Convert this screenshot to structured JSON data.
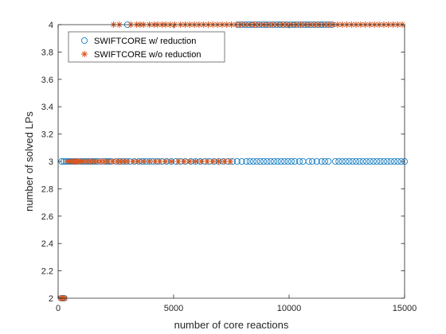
{
  "chart_data": {
    "type": "scatter",
    "xlabel": "number of core reactions",
    "ylabel": "number of solved LPs",
    "xlim": [
      0,
      15000
    ],
    "ylim": [
      2,
      4
    ],
    "x_ticks": [
      0,
      5000,
      10000,
      15000
    ],
    "x_tick_labels": [
      "0",
      "5000",
      "10000",
      "15000"
    ],
    "y_ticks": [
      2,
      2.2,
      2.4,
      2.6,
      2.8,
      3,
      3.2,
      3.4,
      3.6,
      3.8,
      4
    ],
    "y_tick_labels": [
      "2",
      "2.2",
      "2.4",
      "2.6",
      "2.8",
      "3",
      "3.2",
      "3.4",
      "3.6",
      "3.8",
      "4"
    ],
    "grid": false,
    "legend_position": "top-left",
    "series": [
      {
        "name": "SWIFTCORE w/ reduction",
        "marker": "circle",
        "color": "#0072BD",
        "points": [
          [
            150,
            2
          ],
          [
            250,
            2
          ],
          [
            150,
            3
          ],
          [
            250,
            3
          ],
          [
            350,
            3
          ],
          [
            450,
            3
          ],
          [
            550,
            3
          ],
          [
            650,
            3
          ],
          [
            750,
            3
          ],
          [
            850,
            3
          ],
          [
            1000,
            3
          ],
          [
            1100,
            3
          ],
          [
            1200,
            3
          ],
          [
            1300,
            3
          ],
          [
            1400,
            3
          ],
          [
            1500,
            3
          ],
          [
            1600,
            3
          ],
          [
            1700,
            3
          ],
          [
            1850,
            3
          ],
          [
            2000,
            3
          ],
          [
            2100,
            3
          ],
          [
            2200,
            3
          ],
          [
            2300,
            3
          ],
          [
            2500,
            3
          ],
          [
            2650,
            3
          ],
          [
            2800,
            3
          ],
          [
            2950,
            3
          ],
          [
            3100,
            3
          ],
          [
            3300,
            3
          ],
          [
            3500,
            3
          ],
          [
            3650,
            3
          ],
          [
            3800,
            3
          ],
          [
            3950,
            3
          ],
          [
            4100,
            3
          ],
          [
            4300,
            3
          ],
          [
            4500,
            3
          ],
          [
            4700,
            3
          ],
          [
            4900,
            3
          ],
          [
            5100,
            3
          ],
          [
            5300,
            3
          ],
          [
            5500,
            3
          ],
          [
            5750,
            3
          ],
          [
            5950,
            3
          ],
          [
            6150,
            3
          ],
          [
            6350,
            3
          ],
          [
            6550,
            3
          ],
          [
            6750,
            3
          ],
          [
            6950,
            3
          ],
          [
            7150,
            3
          ],
          [
            7350,
            3
          ],
          [
            7550,
            3
          ],
          [
            7750,
            3
          ],
          [
            7950,
            3
          ],
          [
            8150,
            3
          ],
          [
            8300,
            3
          ],
          [
            8450,
            3
          ],
          [
            8600,
            3
          ],
          [
            8750,
            3
          ],
          [
            8900,
            3
          ],
          [
            9050,
            3
          ],
          [
            9200,
            3
          ],
          [
            9350,
            3
          ],
          [
            9500,
            3
          ],
          [
            9650,
            3
          ],
          [
            9800,
            3
          ],
          [
            9950,
            3
          ],
          [
            10100,
            3
          ],
          [
            10250,
            3
          ],
          [
            10450,
            3
          ],
          [
            10600,
            3
          ],
          [
            10850,
            3
          ],
          [
            11000,
            3
          ],
          [
            11200,
            3
          ],
          [
            11400,
            3
          ],
          [
            11550,
            3
          ],
          [
            11700,
            3
          ],
          [
            12000,
            3
          ],
          [
            12150,
            3
          ],
          [
            12300,
            3
          ],
          [
            12450,
            3
          ],
          [
            12600,
            3
          ],
          [
            12750,
            3
          ],
          [
            12900,
            3
          ],
          [
            13050,
            3
          ],
          [
            13200,
            3
          ],
          [
            13350,
            3
          ],
          [
            13500,
            3
          ],
          [
            13650,
            3
          ],
          [
            13800,
            3
          ],
          [
            13950,
            3
          ],
          [
            14100,
            3
          ],
          [
            14250,
            3
          ],
          [
            14400,
            3
          ],
          [
            14550,
            3
          ],
          [
            14700,
            3
          ],
          [
            14850,
            3
          ],
          [
            15000,
            3
          ],
          [
            3000,
            4
          ],
          [
            7800,
            4
          ],
          [
            7950,
            4
          ],
          [
            8100,
            4
          ],
          [
            8250,
            4
          ],
          [
            8400,
            4
          ],
          [
            8550,
            4
          ],
          [
            8700,
            4
          ],
          [
            8850,
            4
          ],
          [
            9000,
            4
          ],
          [
            9150,
            4
          ],
          [
            9300,
            4
          ],
          [
            9450,
            4
          ],
          [
            9600,
            4
          ],
          [
            9750,
            4
          ],
          [
            9900,
            4
          ],
          [
            10050,
            4
          ],
          [
            10200,
            4
          ],
          [
            10350,
            4
          ],
          [
            10500,
            4
          ],
          [
            10650,
            4
          ],
          [
            10800,
            4
          ],
          [
            10950,
            4
          ],
          [
            11100,
            4
          ],
          [
            11250,
            4
          ],
          [
            11400,
            4
          ],
          [
            11550,
            4
          ],
          [
            11700,
            4
          ],
          [
            11850,
            4
          ]
        ]
      },
      {
        "name": "SWIFTCORE w/o reduction",
        "marker": "asterisk",
        "color": "#D95319",
        "points": [
          [
            100,
            2
          ],
          [
            200,
            2
          ],
          [
            300,
            2
          ],
          [
            400,
            3
          ],
          [
            500,
            3
          ],
          [
            600,
            3
          ],
          [
            700,
            3
          ],
          [
            800,
            3
          ],
          [
            900,
            3
          ],
          [
            1000,
            3
          ],
          [
            1100,
            3
          ],
          [
            1250,
            3
          ],
          [
            1400,
            3
          ],
          [
            1550,
            3
          ],
          [
            1700,
            3
          ],
          [
            1850,
            3
          ],
          [
            2000,
            3
          ],
          [
            2150,
            3
          ],
          [
            2350,
            3
          ],
          [
            2550,
            3
          ],
          [
            2700,
            3
          ],
          [
            2850,
            3
          ],
          [
            3000,
            3
          ],
          [
            3250,
            3
          ],
          [
            3450,
            3
          ],
          [
            3700,
            3
          ],
          [
            3950,
            3
          ],
          [
            4200,
            3
          ],
          [
            4400,
            3
          ],
          [
            4650,
            3
          ],
          [
            4900,
            3
          ],
          [
            5200,
            3
          ],
          [
            5450,
            3
          ],
          [
            5700,
            3
          ],
          [
            5950,
            3
          ],
          [
            6200,
            3
          ],
          [
            6450,
            3
          ],
          [
            6700,
            3
          ],
          [
            6950,
            3
          ],
          [
            7200,
            3
          ],
          [
            7450,
            3
          ],
          [
            2400,
            4
          ],
          [
            2650,
            4
          ],
          [
            3150,
            4
          ],
          [
            3400,
            4
          ],
          [
            3550,
            4
          ],
          [
            3700,
            4
          ],
          [
            3950,
            4
          ],
          [
            4150,
            4
          ],
          [
            4300,
            4
          ],
          [
            4500,
            4
          ],
          [
            4650,
            4
          ],
          [
            4850,
            4
          ],
          [
            5050,
            4
          ],
          [
            5300,
            4
          ],
          [
            5500,
            4
          ],
          [
            5700,
            4
          ],
          [
            5900,
            4
          ],
          [
            6100,
            4
          ],
          [
            6300,
            4
          ],
          [
            6500,
            4
          ],
          [
            6700,
            4
          ],
          [
            6900,
            4
          ],
          [
            7100,
            4
          ],
          [
            7300,
            4
          ],
          [
            7500,
            4
          ],
          [
            7700,
            4
          ],
          [
            7900,
            4
          ],
          [
            8100,
            4
          ],
          [
            8300,
            4
          ],
          [
            8500,
            4
          ],
          [
            8700,
            4
          ],
          [
            8900,
            4
          ],
          [
            9100,
            4
          ],
          [
            9300,
            4
          ],
          [
            9500,
            4
          ],
          [
            9700,
            4
          ],
          [
            9900,
            4
          ],
          [
            10100,
            4
          ],
          [
            10300,
            4
          ],
          [
            10500,
            4
          ],
          [
            10700,
            4
          ],
          [
            10900,
            4
          ],
          [
            11100,
            4
          ],
          [
            11300,
            4
          ],
          [
            11500,
            4
          ],
          [
            11700,
            4
          ],
          [
            11900,
            4
          ],
          [
            12100,
            4
          ],
          [
            12300,
            4
          ],
          [
            12500,
            4
          ],
          [
            12700,
            4
          ],
          [
            12900,
            4
          ],
          [
            13100,
            4
          ],
          [
            13300,
            4
          ],
          [
            13500,
            4
          ],
          [
            13700,
            4
          ],
          [
            13900,
            4
          ],
          [
            14100,
            4
          ],
          [
            14300,
            4
          ],
          [
            14500,
            4
          ],
          [
            14700,
            4
          ],
          [
            14900,
            4
          ]
        ]
      }
    ]
  }
}
